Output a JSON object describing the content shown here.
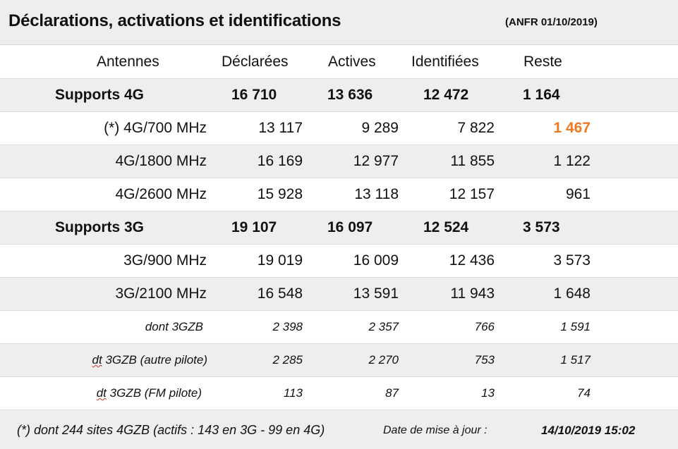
{
  "header": {
    "title": "Déclarations, activations et identifications",
    "source": "(ANFR 01/10/2019)"
  },
  "columns": [
    "Antennes",
    "Déclarées",
    "Actives",
    "Identifiées",
    "Reste"
  ],
  "rows": [
    {
      "label": "Supports 4G",
      "declarees": "16 710",
      "actives": "13 636",
      "identifiees": "12 472",
      "reste": "1 164"
    },
    {
      "label": "(*) 4G/700 MHz",
      "declarees": "13 117",
      "actives": "9 289",
      "identifiees": "7 822",
      "reste": "1 467",
      "reste_color": "#f07820"
    },
    {
      "label": "4G/1800 MHz",
      "declarees": "16 169",
      "actives": "12 977",
      "identifiees": "11 855",
      "reste": "1 122"
    },
    {
      "label": "4G/2600 MHz",
      "declarees": "15 928",
      "actives": "13 118",
      "identifiees": "12 157",
      "reste": "961"
    },
    {
      "label": "Supports 3G",
      "declarees": "19 107",
      "actives": "16 097",
      "identifiees": "12 524",
      "reste": "3 573"
    },
    {
      "label": "3G/900 MHz",
      "declarees": "19 019",
      "actives": "16 009",
      "identifiees": "12 436",
      "reste": "3 573"
    },
    {
      "label": "3G/2100 MHz",
      "declarees": "16 548",
      "actives": "13 591",
      "identifiees": "11 943",
      "reste": "1 648"
    },
    {
      "label": "dont 3GZB",
      "declarees": "2 398",
      "actives": "2 357",
      "identifiees": "766",
      "reste": "1 591"
    },
    {
      "label_prefix": "dt",
      "label_rest": " 3GZB (autre pilote)",
      "declarees": "2 285",
      "actives": "2 270",
      "identifiees": "753",
      "reste": "1 517"
    },
    {
      "label_prefix": "dt",
      "label_rest": " 3GZB (FM pilote)",
      "declarees": "113",
      "actives": "87",
      "identifiees": "13",
      "reste": "74"
    }
  ],
  "footer": {
    "note": "(*) dont 244 sites 4GZB (actifs : 143 en 3G - 99 en 4G)",
    "update_label": "Date de mise à jour :",
    "update_value": "14/10/2019 15:02"
  }
}
